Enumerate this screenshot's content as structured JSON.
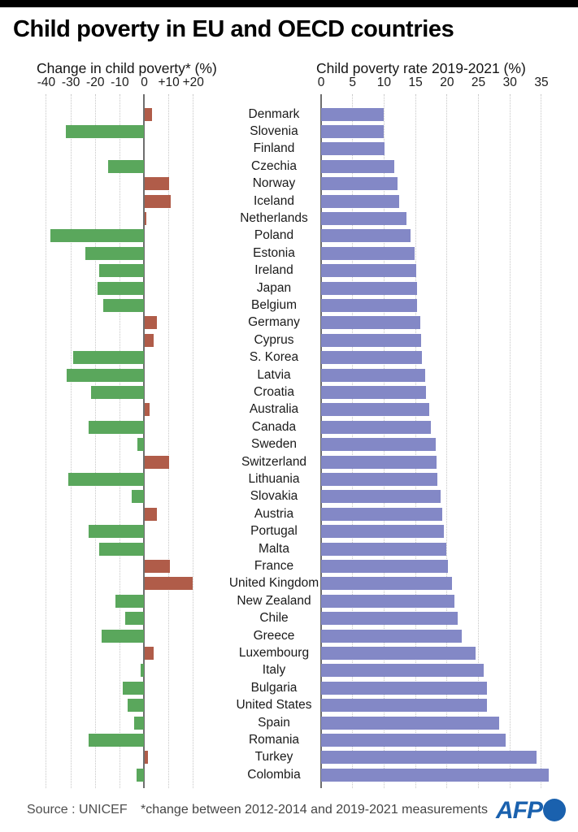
{
  "header": {
    "title": "Child poverty in EU and OECD countries"
  },
  "colors": {
    "decrease_green": "#5aa75c",
    "increase_red": "#b05c49",
    "rate_purple": "#8388c6",
    "axis": "#6e6e6e",
    "grid": "#c6c6c6",
    "logo_blue": "#1a61ae"
  },
  "chart_data": [
    {
      "type": "bar",
      "orientation": "horizontal",
      "title": "Change in child poverty* (%)",
      "categories": [
        "Denmark",
        "Slovenia",
        "Finland",
        "Czechia",
        "Norway",
        "Iceland",
        "Netherlands",
        "Poland",
        "Estonia",
        "Ireland",
        "Japan",
        "Belgium",
        "Germany",
        "Cyprus",
        "S. Korea",
        "Latvia",
        "Croatia",
        "Australia",
        "Canada",
        "Sweden",
        "Switzerland",
        "Lithuania",
        "Slovakia",
        "Austria",
        "Portugal",
        "Malta",
        "France",
        "United Kingdom",
        "New Zealand",
        "Chile",
        "Greece",
        "Luxembourg",
        "Italy",
        "Bulgaria",
        "United States",
        "Spain",
        "Romania",
        "Turkey",
        "Colombia"
      ],
      "values": [
        3.3,
        -31.9,
        0,
        -14.9,
        10,
        10.7,
        0.7,
        -38.2,
        -24.1,
        -18.4,
        -19.1,
        -16.8,
        5.1,
        3.9,
        -29.1,
        -31.6,
        -21.9,
        2.3,
        -22.8,
        -2.7,
        10,
        -30.9,
        -5.1,
        5.1,
        -22.7,
        -18.4,
        10.4,
        19.6,
        -11.8,
        -7.7,
        -17.3,
        3.7,
        -1.4,
        -8.7,
        -6.9,
        -4,
        -22.8,
        1.6,
        -3.2
      ],
      "xticks": [
        -40,
        -30,
        -20,
        -10,
        0,
        10,
        20
      ],
      "xtick_labels": [
        "-40",
        "-30",
        "-20",
        "-10",
        "0",
        "+10",
        "+20"
      ],
      "xlim": [
        -44,
        25
      ],
      "grid": true,
      "legend": "none",
      "bar_colors": {
        "negative": "#5aa75c",
        "positive": "#b05c49"
      }
    },
    {
      "type": "bar",
      "orientation": "horizontal",
      "title": "Child poverty rate 2019-2021 (%)",
      "categories": [
        "Denmark",
        "Slovenia",
        "Finland",
        "Czechia",
        "Norway",
        "Iceland",
        "Netherlands",
        "Poland",
        "Estonia",
        "Ireland",
        "Japan",
        "Belgium",
        "Germany",
        "Cyprus",
        "S. Korea",
        "Latvia",
        "Croatia",
        "Australia",
        "Canada",
        "Sweden",
        "Switzerland",
        "Lithuania",
        "Slovakia",
        "Austria",
        "Portugal",
        "Malta",
        "France",
        "United Kingdom",
        "New Zealand",
        "Chile",
        "Greece",
        "Luxembourg",
        "Italy",
        "Bulgaria",
        "United States",
        "Spain",
        "Romania",
        "Turkey",
        "Colombia"
      ],
      "values": [
        9.9,
        10,
        10.1,
        11.6,
        12.1,
        12.4,
        13.6,
        14.2,
        14.9,
        15.1,
        15.2,
        15.3,
        15.8,
        15.9,
        16,
        16.5,
        16.7,
        17.2,
        17.4,
        18.2,
        18.3,
        18.5,
        19,
        19.3,
        19.5,
        19.9,
        20.1,
        20.8,
        21.2,
        21.7,
        22.4,
        24.6,
        25.8,
        26.3,
        26.4,
        28.3,
        29.3,
        34.2,
        36.2
      ],
      "xticks": [
        0,
        5,
        10,
        15,
        20,
        25,
        30,
        35
      ],
      "xtick_labels": [
        "0",
        "5",
        "10",
        "15",
        "20",
        "25",
        "30",
        "35"
      ],
      "xlim": [
        0,
        37.5
      ],
      "grid": true,
      "legend": "none",
      "bar_color": "#8388c6"
    }
  ],
  "footer": {
    "source": "Source : UNICEF",
    "note": "*change between 2012-2014 and 2019-2021 measurements",
    "logo_text": "AFP"
  }
}
